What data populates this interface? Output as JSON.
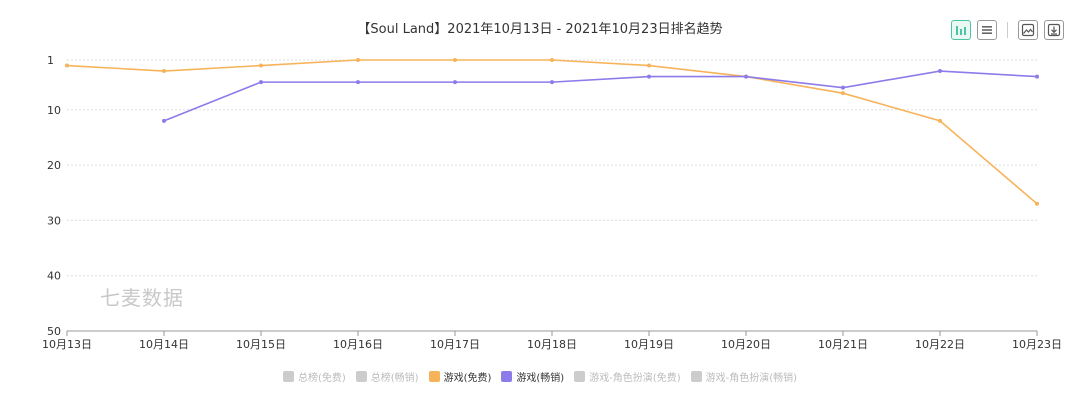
{
  "title": "【Soul Land】2021年10月13日 - 2021年10月23日排名趋势",
  "watermark": "七麦数据",
  "toolbar": {
    "icons": [
      "bar-chart-icon",
      "list-icon",
      "image-icon",
      "download-icon"
    ]
  },
  "colors": {
    "free": "#f7b35a",
    "paid": "#8c7bea",
    "legend_off": "#cccccc",
    "grid": "#dddddd",
    "axis": "#999999"
  },
  "legend": [
    {
      "label": "总榜(免费)",
      "active": false
    },
    {
      "label": "总榜(畅销)",
      "active": false
    },
    {
      "label": "游戏(免费)",
      "active": true,
      "color": "#f7b35a"
    },
    {
      "label": "游戏(畅销)",
      "active": true,
      "color": "#8c7bea"
    },
    {
      "label": "游戏-角色扮演(免费)",
      "active": false
    },
    {
      "label": "游戏-角色扮演(畅销)",
      "active": false
    }
  ],
  "chart_data": {
    "type": "line",
    "title": "【Soul Land】2021年10月13日 - 2021年10月23日排名趋势",
    "categories": [
      "10月13日",
      "10月14日",
      "10月15日",
      "10月16日",
      "10月17日",
      "10月18日",
      "10月19日",
      "10月20日",
      "10月21日",
      "10月22日",
      "10月23日"
    ],
    "y_ticks": [
      1,
      10,
      20,
      30,
      40,
      50
    ],
    "ylim": [
      1,
      50
    ],
    "y_inverted": true,
    "grid": true,
    "legend_position": "bottom",
    "series": [
      {
        "name": "游戏(免费)",
        "color": "#f7b35a",
        "values": [
          2,
          3,
          2,
          1,
          1,
          1,
          2,
          4,
          7,
          12,
          27
        ]
      },
      {
        "name": "游戏(畅销)",
        "color": "#8c7bea",
        "values": [
          null,
          12,
          5,
          5,
          5,
          5,
          4,
          4,
          6,
          3,
          4
        ]
      }
    ]
  }
}
